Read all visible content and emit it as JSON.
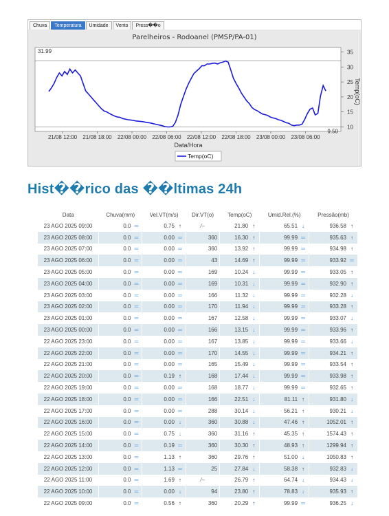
{
  "tabs": [
    "Chuva",
    "Temperatura",
    "Umidade",
    "Vento",
    "Press��o"
  ],
  "active_tab": 1,
  "chart_data": {
    "type": "line",
    "title": "Parelheiros - Rodoanel (PMSP/PA-01)",
    "xlabel": "Data/Hora",
    "ylabel": "Temp(oC)",
    "y_ticks": [
      10,
      15,
      20,
      25,
      30,
      35
    ],
    "x_ticks": [
      "21/08 12:00",
      "21/08 18:00",
      "22/08 00:00",
      "22/08 06:00",
      "22/08 12:00",
      "22/08 18:00",
      "23/08 00:00",
      "23/08 06:00"
    ],
    "max_label": "31.99",
    "min_label": "9.50",
    "ylim": [
      8.5,
      36.5
    ],
    "series": [
      {
        "name": "Temp(oC)",
        "color": "#1a1adc",
        "values": [
          21.8,
          23.0,
          24.5,
          26.5,
          28.0,
          27.0,
          28.5,
          27.5,
          29.3,
          28.0,
          29.0,
          28.0,
          27.0,
          24.5,
          22.0,
          21.0,
          20.0,
          19.0,
          18.0,
          17.0,
          16.0,
          15.3,
          15.0,
          14.5,
          14.0,
          13.6,
          13.3,
          13.2,
          12.8,
          12.6,
          12.4,
          12.3,
          12.2,
          12.0,
          11.9,
          11.8,
          11.7,
          11.5,
          11.4,
          11.2,
          11.0,
          10.8,
          10.6,
          10.4,
          10.1,
          10.0,
          10.0,
          10.2,
          11.5,
          14.0,
          17.44,
          20.0,
          22.51,
          24.5,
          26.2,
          27.8,
          28.6,
          29.4,
          30.4,
          30.4,
          31.0,
          31.0,
          31.2,
          31.3,
          31.0,
          31.4,
          31.6,
          32.0,
          31.6,
          29.0,
          26.2,
          24.5,
          23.0,
          21.3,
          20.0,
          18.7,
          17.8,
          16.5,
          15.8,
          15.4,
          14.8,
          14.3,
          14.1,
          13.8,
          13.3,
          13.0,
          12.8,
          12.4,
          12.2,
          11.8,
          11.4,
          11.2,
          10.6,
          10.4,
          10.6,
          10.6,
          10.9,
          12.5,
          14.4,
          15.9,
          16.3,
          14.0,
          14.5,
          20.3,
          23.8,
          22.0
        ]
      }
    ]
  },
  "history": {
    "title": "Hist��rico das ��ltimas 24h",
    "columns": [
      "Data",
      "Chuva(mm)",
      "Vel.VT(m/s)",
      "Dir.VT(o)",
      "Temp(oC)",
      "Umid.Rel.(%)",
      "Pressão(mb)"
    ],
    "rows": [
      [
        "23 AGO 2025 09:00",
        "0.0",
        "eq",
        "0.75",
        "up",
        "wind-calm",
        "21.80",
        "up",
        "65.51",
        "down",
        "936.58",
        "up"
      ],
      [
        "23 AGO 2025 08:00",
        "0.0",
        "eq",
        "0.00",
        "eq",
        "360",
        "16.30",
        "up",
        "99.99",
        "eq",
        "935.63",
        "up"
      ],
      [
        "23 AGO 2025 07:00",
        "0.0",
        "eq",
        "0.00",
        "eq",
        "360",
        "13.92",
        "up",
        "99.99",
        "eq",
        "934.98",
        "up"
      ],
      [
        "23 AGO 2025 06:00",
        "0.0",
        "eq",
        "0.00",
        "eq",
        "43",
        "14.69",
        "up",
        "99.99",
        "eq",
        "933.92",
        "eq"
      ],
      [
        "23 AGO 2025 05:00",
        "0.0",
        "eq",
        "0.00",
        "eq",
        "169",
        "10.24",
        "down",
        "99.99",
        "eq",
        "933.05",
        "up"
      ],
      [
        "23 AGO 2025 04:00",
        "0.0",
        "eq",
        "0.00",
        "eq",
        "169",
        "10.31",
        "down",
        "99.99",
        "eq",
        "932.90",
        "up"
      ],
      [
        "23 AGO 2025 03:00",
        "0.0",
        "eq",
        "0.00",
        "eq",
        "166",
        "11.32",
        "down",
        "99.99",
        "eq",
        "932.28",
        "down"
      ],
      [
        "23 AGO 2025 02:00",
        "0.0",
        "eq",
        "0.00",
        "eq",
        "170",
        "11.94",
        "down",
        "99.99",
        "eq",
        "933.28",
        "up"
      ],
      [
        "23 AGO 2025 01:00",
        "0.0",
        "eq",
        "0.00",
        "eq",
        "167",
        "12.58",
        "down",
        "99.99",
        "eq",
        "933.07",
        "down"
      ],
      [
        "23 AGO 2025 00:00",
        "0.0",
        "eq",
        "0.00",
        "eq",
        "166",
        "13.15",
        "down",
        "99.99",
        "eq",
        "933.96",
        "up"
      ],
      [
        "22 AGO 2025 23:00",
        "0.0",
        "eq",
        "0.00",
        "eq",
        "167",
        "13.85",
        "down",
        "99.99",
        "eq",
        "933.66",
        "down"
      ],
      [
        "22 AGO 2025 22:00",
        "0.0",
        "eq",
        "0.00",
        "eq",
        "170",
        "14.55",
        "down",
        "99.99",
        "eq",
        "934.21",
        "up"
      ],
      [
        "22 AGO 2025 21:00",
        "0.0",
        "eq",
        "0.00",
        "eq",
        "165",
        "15.49",
        "down",
        "99.99",
        "eq",
        "933.54",
        "up"
      ],
      [
        "22 AGO 2025 20:00",
        "0.0",
        "eq",
        "0.19",
        "up",
        "168",
        "17.44",
        "down",
        "99.99",
        "eq",
        "933.98",
        "up"
      ],
      [
        "22 AGO 2025 19:00",
        "0.0",
        "eq",
        "0.00",
        "eq",
        "168",
        "18.77",
        "down",
        "99.99",
        "eq",
        "932.65",
        "up"
      ],
      [
        "22 AGO 2025 18:00",
        "0.0",
        "eq",
        "0.00",
        "eq",
        "166",
        "22.51",
        "down",
        "81.11",
        "up",
        "931.80",
        "down"
      ],
      [
        "22 AGO 2025 17:00",
        "0.0",
        "eq",
        "0.00",
        "eq",
        "288",
        "30.14",
        "down",
        "56.21",
        "up",
        "930.21",
        "down"
      ],
      [
        "22 AGO 2025 16:00",
        "0.0",
        "eq",
        "0.00",
        "down",
        "360",
        "30.88",
        "down",
        "47.46",
        "up",
        "1052.01",
        "up"
      ],
      [
        "22 AGO 2025 15:00",
        "0.0",
        "eq",
        "0.75",
        "down",
        "360",
        "31.16",
        "up",
        "45.35",
        "up",
        "1574.43",
        "up"
      ],
      [
        "22 AGO 2025 14:00",
        "0.0",
        "eq",
        "0.19",
        "eq",
        "360",
        "30.30",
        "up",
        "48.93",
        "up",
        "1299.94",
        "up"
      ],
      [
        "22 AGO 2025 13:00",
        "0.0",
        "eq",
        "1.13",
        "up",
        "360",
        "29.76",
        "up",
        "51.00",
        "down",
        "1050.83",
        "up"
      ],
      [
        "22 AGO 2025 12:00",
        "0.0",
        "eq",
        "1.13",
        "eq",
        "25",
        "27.84",
        "down",
        "58.38",
        "up",
        "932.83",
        "down"
      ],
      [
        "22 AGO 2025 11:00",
        "0.0",
        "eq",
        "1.69",
        "up",
        "wind-calm",
        "26.79",
        "up",
        "64.74",
        "down",
        "934.43",
        "down"
      ],
      [
        "22 AGO 2025 10:00",
        "0.0",
        "eq",
        "0.00",
        "down",
        "94",
        "23.80",
        "up",
        "78.83",
        "down",
        "935.93",
        "up"
      ],
      [
        "22 AGO 2025 09:00",
        "0.0",
        "eq",
        "0.56",
        "up",
        "360",
        "20.29",
        "up",
        "99.99",
        "eq",
        "936.25",
        "down"
      ]
    ]
  }
}
